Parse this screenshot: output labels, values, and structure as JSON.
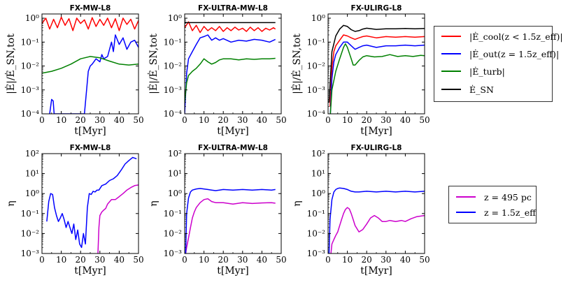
{
  "chart_data": [
    {
      "type": "line",
      "title": "FX-MW-L8",
      "xlabel": "t[Myr]",
      "ylabel": "|Ė|/Ė_SN,tot",
      "yscale": "log",
      "xlim": [
        0,
        50
      ],
      "ylim": [
        0.0001,
        1.5
      ],
      "xticks": [
        "0",
        "10",
        "20",
        "30",
        "40",
        "50"
      ],
      "yticks": [
        "10^-4",
        "10^-3",
        "10^-2",
        "10^-1",
        "10^0"
      ],
      "series": [
        {
          "name": "cool",
          "color": "#ff0000",
          "x": [
            0,
            2,
            4,
            6,
            8,
            10,
            12,
            14,
            16,
            18,
            20,
            22,
            24,
            26,
            28,
            30,
            32,
            34,
            36,
            38,
            40,
            42,
            44,
            46,
            48,
            50
          ],
          "y": [
            0.6,
            1.0,
            0.35,
            0.9,
            0.4,
            1.1,
            0.5,
            0.95,
            0.3,
            1.0,
            0.6,
            0.85,
            0.35,
            1.05,
            0.45,
            0.9,
            0.5,
            1.0,
            0.4,
            0.95,
            0.3,
            1.0,
            0.55,
            0.9,
            0.35,
            0.8
          ]
        },
        {
          "name": "out",
          "color": "#0000ff",
          "x": [
            4,
            5,
            5.8,
            6.3,
            7,
            22,
            23,
            24,
            25,
            26,
            28,
            30,
            31,
            32,
            34,
            36,
            37,
            38,
            40,
            42,
            44,
            46,
            48,
            50
          ],
          "y": [
            0.0001,
            0.0004,
            0.00035,
            0.0001,
            0.0001,
            0.0001,
            0.0008,
            0.006,
            0.01,
            0.012,
            0.02,
            0.015,
            0.03,
            0.02,
            0.025,
            0.1,
            0.04,
            0.2,
            0.08,
            0.15,
            0.05,
            0.1,
            0.12,
            0.06
          ]
        },
        {
          "name": "turb",
          "color": "#008000",
          "x": [
            0,
            5,
            10,
            15,
            20,
            25,
            30,
            35,
            40,
            45,
            50
          ],
          "y": [
            0.005,
            0.006,
            0.008,
            0.012,
            0.02,
            0.025,
            0.022,
            0.016,
            0.012,
            0.011,
            0.012
          ]
        }
      ]
    },
    {
      "type": "line",
      "title": "FX-ULTRA-MW-L8",
      "xlabel": "t[Myr]",
      "ylabel": "|Ė|/Ė_SN,tot",
      "yscale": "log",
      "xlim": [
        0,
        50
      ],
      "ylim": [
        0.0001,
        1.5
      ],
      "xticks": [
        "0",
        "10",
        "20",
        "30",
        "40",
        "50"
      ],
      "yticks": [
        "10^-4",
        "10^-3",
        "10^-2",
        "10^-1",
        "10^0"
      ],
      "series": [
        {
          "name": "cool",
          "color": "#ff0000",
          "x": [
            0,
            2,
            4,
            6,
            8,
            10,
            12,
            14,
            16,
            18,
            20,
            22,
            24,
            26,
            28,
            30,
            32,
            34,
            36,
            38,
            40,
            42,
            44,
            46,
            47
          ],
          "y": [
            0.4,
            0.7,
            0.3,
            0.5,
            0.25,
            0.45,
            0.3,
            0.4,
            0.3,
            0.45,
            0.28,
            0.4,
            0.3,
            0.42,
            0.32,
            0.38,
            0.28,
            0.42,
            0.3,
            0.4,
            0.28,
            0.38,
            0.32,
            0.4,
            0.35
          ]
        },
        {
          "name": "out",
          "color": "#0000ff",
          "x": [
            0,
            1,
            2,
            4,
            6,
            8,
            10,
            12,
            14,
            16,
            18,
            20,
            24,
            28,
            32,
            36,
            40,
            44,
            47
          ],
          "y": [
            0.0001,
            0.005,
            0.02,
            0.04,
            0.08,
            0.15,
            0.17,
            0.2,
            0.12,
            0.15,
            0.12,
            0.14,
            0.1,
            0.12,
            0.11,
            0.13,
            0.12,
            0.1,
            0.13
          ]
        },
        {
          "name": "turb",
          "color": "#008000",
          "x": [
            0,
            1,
            2,
            4,
            6,
            8,
            10,
            12,
            14,
            16,
            18,
            20,
            24,
            28,
            32,
            36,
            40,
            44,
            47
          ],
          "y": [
            0.0003,
            0.002,
            0.004,
            0.006,
            0.008,
            0.012,
            0.02,
            0.015,
            0.012,
            0.014,
            0.018,
            0.02,
            0.02,
            0.018,
            0.02,
            0.019,
            0.02,
            0.02,
            0.021
          ]
        },
        {
          "name": "SN",
          "color": "#000000",
          "x": [
            0,
            47
          ],
          "y": [
            0.65,
            0.65
          ]
        }
      ]
    },
    {
      "type": "line",
      "title": "FX-ULIRG-L8",
      "xlabel": "t[Myr]",
      "ylabel": "|Ė|/Ė_SN,tot",
      "yscale": "log",
      "xlim": [
        0,
        50
      ],
      "ylim": [
        0.0001,
        1.5
      ],
      "xticks": [
        "0",
        "10",
        "20",
        "30",
        "40",
        "50"
      ],
      "yticks": [
        "10^-4",
        "10^-3",
        "10^-2",
        "10^-1",
        "10^0"
      ],
      "series": [
        {
          "name": "cool",
          "color": "#ff0000",
          "x": [
            1,
            2,
            3,
            4,
            6,
            8,
            10,
            12,
            14,
            16,
            18,
            20,
            25,
            30,
            35,
            40,
            45,
            50
          ],
          "y": [
            0.0002,
            0.008,
            0.04,
            0.07,
            0.12,
            0.2,
            0.18,
            0.15,
            0.13,
            0.15,
            0.17,
            0.18,
            0.15,
            0.17,
            0.16,
            0.17,
            0.16,
            0.17
          ]
        },
        {
          "name": "out",
          "color": "#0000ff",
          "x": [
            1.2,
            2,
            3,
            4,
            6,
            8,
            10,
            12,
            14,
            16,
            18,
            20,
            25,
            30,
            35,
            40,
            45,
            50
          ],
          "y": [
            0.0001,
            0.003,
            0.015,
            0.03,
            0.06,
            0.1,
            0.1,
            0.07,
            0.05,
            0.06,
            0.07,
            0.075,
            0.06,
            0.07,
            0.07,
            0.075,
            0.07,
            0.075
          ]
        },
        {
          "name": "turb",
          "color": "#008000",
          "x": [
            1.2,
            2,
            4,
            6,
            8,
            9,
            10,
            12,
            13,
            14,
            16,
            18,
            20,
            24,
            28,
            32,
            36,
            40,
            44,
            48,
            50
          ],
          "y": [
            0.0001,
            0.001,
            0.006,
            0.02,
            0.06,
            0.085,
            0.06,
            0.02,
            0.011,
            0.011,
            0.017,
            0.024,
            0.027,
            0.024,
            0.025,
            0.03,
            0.025,
            0.027,
            0.025,
            0.028,
            0.027
          ]
        },
        {
          "name": "SN",
          "color": "#000000",
          "x": [
            0.5,
            2,
            4,
            6,
            8,
            10,
            12,
            14,
            16,
            18,
            20,
            25,
            30,
            35,
            40,
            45,
            50
          ],
          "y": [
            0.0003,
            0.04,
            0.18,
            0.35,
            0.5,
            0.45,
            0.33,
            0.28,
            0.3,
            0.35,
            0.38,
            0.34,
            0.36,
            0.36,
            0.37,
            0.36,
            0.37
          ]
        }
      ]
    },
    {
      "type": "line",
      "title": "FX-MW-L8",
      "xlabel": "t[Myr]",
      "ylabel": "η",
      "yscale": "log",
      "xlim": [
        0,
        50
      ],
      "ylim": [
        0.001,
        100
      ],
      "xticks": [
        "0",
        "10",
        "20",
        "30",
        "40",
        "50"
      ],
      "yticks": [
        "10^-3",
        "10^-2",
        "10^-1",
        "10^0",
        "10^1",
        "10^2"
      ],
      "series": [
        {
          "name": "z = 495 pc",
          "color": "#cc00cc",
          "x": [
            29,
            29.5,
            30,
            31,
            32,
            33,
            34,
            36,
            38,
            40,
            42,
            44,
            46,
            48,
            50
          ],
          "y": [
            0.001,
            0.02,
            0.08,
            0.12,
            0.15,
            0.18,
            0.3,
            0.5,
            0.5,
            0.7,
            1.0,
            1.5,
            2.0,
            2.5,
            2.7
          ]
        },
        {
          "name": "z = 1.5z_eff",
          "color": "#0000ff",
          "x": [
            2.5,
            3.5,
            4.5,
            5.5,
            6.5,
            7.5,
            8.5,
            9.5,
            10.5,
            11.5,
            12.5,
            13.5,
            14.5,
            15.5,
            16.5,
            17.5,
            18.5,
            19.5,
            20.5,
            21.5,
            22.5,
            23.5,
            24.5,
            25.5,
            26.5,
            27.5,
            28.5,
            29.5,
            31,
            33,
            35,
            37,
            39,
            41,
            43,
            45,
            47,
            49
          ],
          "y": [
            0.04,
            0.4,
            1.0,
            0.9,
            0.2,
            0.08,
            0.04,
            0.06,
            0.1,
            0.05,
            0.02,
            0.04,
            0.02,
            0.01,
            0.03,
            0.005,
            0.015,
            0.003,
            0.002,
            0.01,
            0.003,
            0.2,
            1.0,
            0.9,
            1.3,
            1.2,
            1.5,
            1.5,
            2.5,
            3.0,
            4.5,
            5.5,
            8.0,
            15.0,
            30.0,
            45.0,
            65.0,
            55.0
          ]
        }
      ]
    },
    {
      "type": "line",
      "title": "FX-ULTRA-MW-L8",
      "xlabel": "t[Myr]",
      "ylabel": "η",
      "yscale": "log",
      "xlim": [
        0,
        50
      ],
      "ylim": [
        0.001,
        100
      ],
      "xticks": [
        "0",
        "10",
        "20",
        "30",
        "40",
        "50"
      ],
      "yticks": [
        "10^-3",
        "10^-2",
        "10^-1",
        "10^0",
        "10^1",
        "10^2"
      ],
      "series": [
        {
          "name": "z = 495 pc",
          "color": "#cc00cc",
          "x": [
            0.5,
            1,
            2,
            3,
            4,
            5,
            6,
            8,
            10,
            12,
            14,
            16,
            20,
            25,
            30,
            35,
            40,
            45,
            47
          ],
          "y": [
            0.001,
            0.002,
            0.006,
            0.02,
            0.06,
            0.12,
            0.2,
            0.35,
            0.5,
            0.55,
            0.4,
            0.35,
            0.35,
            0.3,
            0.35,
            0.32,
            0.34,
            0.35,
            0.33
          ]
        },
        {
          "name": "z = 1.5z_eff",
          "color": "#0000ff",
          "x": [
            0.5,
            1,
            2,
            3,
            4,
            6,
            8,
            10,
            12,
            14,
            16,
            18,
            20,
            25,
            30,
            35,
            40,
            45,
            47
          ],
          "y": [
            0.001,
            0.1,
            0.6,
            1.2,
            1.5,
            1.7,
            1.8,
            1.7,
            1.6,
            1.5,
            1.4,
            1.5,
            1.6,
            1.5,
            1.6,
            1.5,
            1.6,
            1.5,
            1.6
          ]
        }
      ]
    },
    {
      "type": "line",
      "title": "FX-ULIRG-L8",
      "xlabel": "t[Myr]",
      "ylabel": "η",
      "yscale": "log",
      "xlim": [
        0,
        50
      ],
      "ylim": [
        0.001,
        100
      ],
      "xticks": [
        "0",
        "10",
        "20",
        "30",
        "40",
        "50"
      ],
      "yticks": [
        "10^-3",
        "10^-2",
        "10^-1",
        "10^0",
        "10^1",
        "10^2"
      ],
      "series": [
        {
          "name": "z = 495 pc",
          "color": "#cc00cc",
          "x": [
            1.5,
            2,
            3,
            4,
            5,
            6,
            7,
            8,
            9,
            10,
            11,
            12,
            13,
            14,
            16,
            18,
            20,
            22,
            24,
            26,
            28,
            30,
            32,
            35,
            38,
            40,
            43,
            46,
            50
          ],
          "y": [
            0.001,
            0.003,
            0.005,
            0.008,
            0.012,
            0.025,
            0.05,
            0.1,
            0.16,
            0.2,
            0.17,
            0.1,
            0.05,
            0.025,
            0.012,
            0.016,
            0.03,
            0.06,
            0.08,
            0.06,
            0.04,
            0.04,
            0.045,
            0.04,
            0.045,
            0.04,
            0.055,
            0.07,
            0.08
          ]
        },
        {
          "name": "z = 1.5z_eff",
          "color": "#0000ff",
          "x": [
            0.5,
            1,
            2,
            3,
            4,
            5,
            6,
            8,
            10,
            12,
            14,
            16,
            20,
            25,
            30,
            35,
            40,
            45,
            50
          ],
          "y": [
            0.001,
            0.05,
            0.5,
            1.2,
            1.6,
            1.8,
            1.9,
            1.8,
            1.6,
            1.3,
            1.2,
            1.2,
            1.3,
            1.2,
            1.3,
            1.2,
            1.3,
            1.2,
            1.3
          ]
        }
      ]
    }
  ],
  "legends": {
    "energy": [
      {
        "label": "|Ė_cool(z < 1.5z_eff)|",
        "color": "#ff0000"
      },
      {
        "label": "|Ė_out(z = 1.5z_eff)|",
        "color": "#0000ff"
      },
      {
        "label": "|Ė_turb|",
        "color": "#008000"
      },
      {
        "label": "Ė_SN",
        "color": "#000000"
      }
    ],
    "eta": [
      {
        "label": "z = 495 pc",
        "color": "#cc00cc"
      },
      {
        "label": "z = 1.5z_eff",
        "color": "#0000ff"
      }
    ]
  }
}
